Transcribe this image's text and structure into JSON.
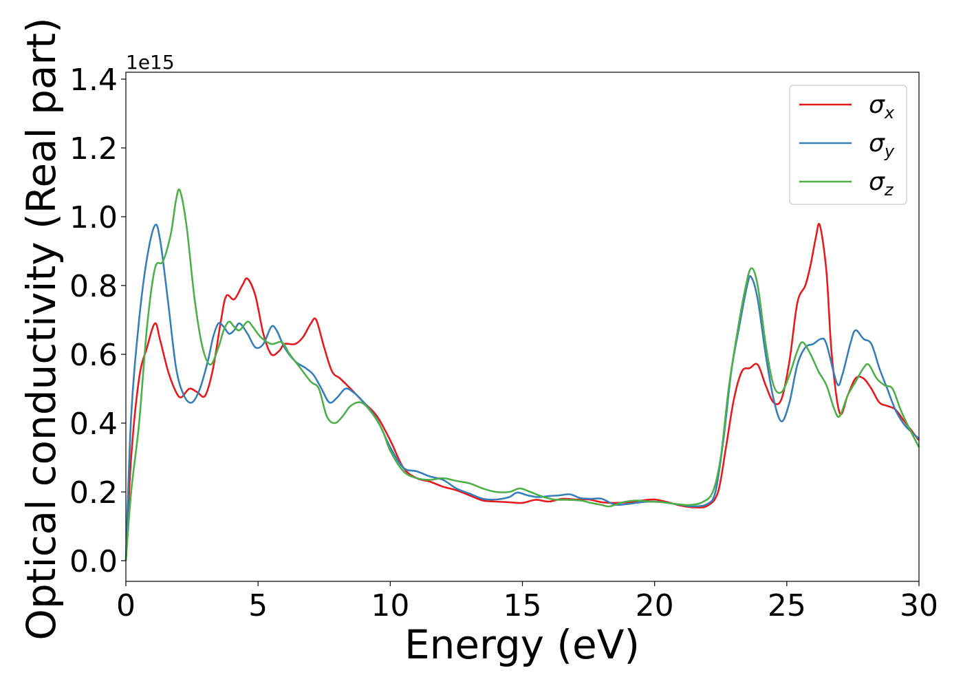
{
  "chart_data": {
    "type": "line",
    "xlabel": "Energy (eV)",
    "ylabel": "Optical conductivity (Real part)",
    "y_offset_label": "1e15",
    "xlim": [
      0,
      30
    ],
    "ylim": [
      -0.06,
      1.42
    ],
    "xticks": [
      0,
      5,
      10,
      15,
      20,
      25,
      30
    ],
    "xtick_labels": [
      "0",
      "5",
      "10",
      "15",
      "20",
      "25",
      "30"
    ],
    "yticks": [
      0.0,
      0.2,
      0.4,
      0.6,
      0.8,
      1.0,
      1.2,
      1.4
    ],
    "ytick_labels": [
      "0.0",
      "0.2",
      "0.4",
      "0.6",
      "0.8",
      "1.0",
      "1.2",
      "1.4"
    ],
    "grid": false,
    "legend_position": "top-right",
    "series": [
      {
        "name": "σx",
        "symbol": "σ",
        "subscript": "x",
        "color": "#e41a1c",
        "points": [
          [
            0,
            0
          ],
          [
            0.2,
            0.3
          ],
          [
            0.5,
            0.53
          ],
          [
            0.8,
            0.62
          ],
          [
            1.1,
            0.69
          ],
          [
            1.3,
            0.64
          ],
          [
            1.6,
            0.55
          ],
          [
            1.9,
            0.49
          ],
          [
            2.1,
            0.475
          ],
          [
            2.4,
            0.5
          ],
          [
            2.7,
            0.49
          ],
          [
            3.0,
            0.48
          ],
          [
            3.3,
            0.56
          ],
          [
            3.6,
            0.7
          ],
          [
            3.8,
            0.77
          ],
          [
            4.1,
            0.76
          ],
          [
            4.4,
            0.8
          ],
          [
            4.6,
            0.82
          ],
          [
            4.9,
            0.77
          ],
          [
            5.2,
            0.66
          ],
          [
            5.5,
            0.6
          ],
          [
            5.8,
            0.61
          ],
          [
            6.0,
            0.63
          ],
          [
            6.4,
            0.63
          ],
          [
            6.7,
            0.65
          ],
          [
            7.0,
            0.69
          ],
          [
            7.2,
            0.7
          ],
          [
            7.5,
            0.62
          ],
          [
            7.8,
            0.55
          ],
          [
            8.1,
            0.53
          ],
          [
            8.5,
            0.5
          ],
          [
            9.0,
            0.46
          ],
          [
            9.5,
            0.42
          ],
          [
            10.0,
            0.35
          ],
          [
            10.5,
            0.27
          ],
          [
            11.0,
            0.24
          ],
          [
            11.5,
            0.23
          ],
          [
            12.0,
            0.215
          ],
          [
            12.5,
            0.205
          ],
          [
            13.0,
            0.19
          ],
          [
            13.5,
            0.175
          ],
          [
            14.0,
            0.172
          ],
          [
            14.5,
            0.17
          ],
          [
            15.0,
            0.168
          ],
          [
            15.5,
            0.177
          ],
          [
            16.0,
            0.172
          ],
          [
            16.5,
            0.18
          ],
          [
            17.0,
            0.178
          ],
          [
            17.5,
            0.178
          ],
          [
            18.0,
            0.17
          ],
          [
            18.5,
            0.168
          ],
          [
            19.0,
            0.17
          ],
          [
            19.5,
            0.175
          ],
          [
            20.0,
            0.178
          ],
          [
            20.5,
            0.17
          ],
          [
            21.0,
            0.16
          ],
          [
            21.5,
            0.155
          ],
          [
            22.0,
            0.16
          ],
          [
            22.4,
            0.2
          ],
          [
            22.7,
            0.33
          ],
          [
            23.0,
            0.47
          ],
          [
            23.3,
            0.55
          ],
          [
            23.6,
            0.56
          ],
          [
            23.9,
            0.57
          ],
          [
            24.2,
            0.51
          ],
          [
            24.5,
            0.46
          ],
          [
            24.8,
            0.47
          ],
          [
            25.1,
            0.58
          ],
          [
            25.4,
            0.75
          ],
          [
            25.7,
            0.8
          ],
          [
            25.9,
            0.86
          ],
          [
            26.1,
            0.94
          ],
          [
            26.25,
            0.975
          ],
          [
            26.5,
            0.84
          ],
          [
            26.7,
            0.6
          ],
          [
            27.0,
            0.43
          ],
          [
            27.3,
            0.48
          ],
          [
            27.6,
            0.53
          ],
          [
            27.9,
            0.53
          ],
          [
            28.2,
            0.5
          ],
          [
            28.5,
            0.46
          ],
          [
            28.8,
            0.45
          ],
          [
            29.1,
            0.44
          ],
          [
            29.4,
            0.41
          ],
          [
            29.7,
            0.38
          ],
          [
            30.0,
            0.35
          ]
        ]
      },
      {
        "name": "σy",
        "symbol": "σ",
        "subscript": "y",
        "color": "#377eb8",
        "points": [
          [
            0,
            0
          ],
          [
            0.2,
            0.42
          ],
          [
            0.5,
            0.7
          ],
          [
            0.8,
            0.88
          ],
          [
            1.1,
            0.975
          ],
          [
            1.3,
            0.93
          ],
          [
            1.6,
            0.75
          ],
          [
            1.9,
            0.56
          ],
          [
            2.2,
            0.48
          ],
          [
            2.5,
            0.46
          ],
          [
            2.8,
            0.5
          ],
          [
            3.1,
            0.58
          ],
          [
            3.3,
            0.65
          ],
          [
            3.5,
            0.69
          ],
          [
            3.7,
            0.68
          ],
          [
            3.9,
            0.66
          ],
          [
            4.1,
            0.67
          ],
          [
            4.3,
            0.69
          ],
          [
            4.6,
            0.66
          ],
          [
            4.9,
            0.62
          ],
          [
            5.2,
            0.63
          ],
          [
            5.5,
            0.68
          ],
          [
            5.7,
            0.67
          ],
          [
            6.0,
            0.62
          ],
          [
            6.4,
            0.58
          ],
          [
            6.8,
            0.56
          ],
          [
            7.1,
            0.54
          ],
          [
            7.4,
            0.5
          ],
          [
            7.7,
            0.46
          ],
          [
            8.0,
            0.475
          ],
          [
            8.3,
            0.5
          ],
          [
            8.6,
            0.49
          ],
          [
            9.0,
            0.46
          ],
          [
            9.5,
            0.41
          ],
          [
            10.0,
            0.33
          ],
          [
            10.5,
            0.27
          ],
          [
            11.0,
            0.26
          ],
          [
            11.5,
            0.245
          ],
          [
            12.0,
            0.235
          ],
          [
            12.5,
            0.21
          ],
          [
            13.0,
            0.195
          ],
          [
            13.5,
            0.18
          ],
          [
            14.0,
            0.178
          ],
          [
            14.5,
            0.185
          ],
          [
            14.8,
            0.198
          ],
          [
            15.2,
            0.19
          ],
          [
            15.6,
            0.185
          ],
          [
            16.0,
            0.188
          ],
          [
            16.4,
            0.19
          ],
          [
            16.8,
            0.193
          ],
          [
            17.2,
            0.182
          ],
          [
            17.6,
            0.18
          ],
          [
            18.0,
            0.18
          ],
          [
            18.5,
            0.163
          ],
          [
            19.0,
            0.165
          ],
          [
            19.5,
            0.17
          ],
          [
            20.0,
            0.172
          ],
          [
            20.5,
            0.168
          ],
          [
            21.0,
            0.162
          ],
          [
            21.5,
            0.158
          ],
          [
            22.0,
            0.165
          ],
          [
            22.3,
            0.2
          ],
          [
            22.6,
            0.35
          ],
          [
            22.9,
            0.55
          ],
          [
            23.2,
            0.68
          ],
          [
            23.5,
            0.8
          ],
          [
            23.65,
            0.825
          ],
          [
            23.9,
            0.76
          ],
          [
            24.2,
            0.6
          ],
          [
            24.5,
            0.47
          ],
          [
            24.8,
            0.405
          ],
          [
            25.1,
            0.46
          ],
          [
            25.4,
            0.57
          ],
          [
            25.7,
            0.62
          ],
          [
            26.0,
            0.63
          ],
          [
            26.3,
            0.645
          ],
          [
            26.5,
            0.63
          ],
          [
            26.9,
            0.515
          ],
          [
            27.1,
            0.54
          ],
          [
            27.4,
            0.63
          ],
          [
            27.6,
            0.67
          ],
          [
            27.9,
            0.645
          ],
          [
            28.2,
            0.63
          ],
          [
            28.5,
            0.56
          ],
          [
            28.8,
            0.5
          ],
          [
            29.1,
            0.44
          ],
          [
            29.4,
            0.4
          ],
          [
            29.7,
            0.375
          ],
          [
            30.0,
            0.355
          ]
        ]
      },
      {
        "name": "σz",
        "symbol": "σ",
        "subscript": "z",
        "color": "#4daf4a",
        "points": [
          [
            0,
            0
          ],
          [
            0.2,
            0.2
          ],
          [
            0.5,
            0.4
          ],
          [
            0.8,
            0.68
          ],
          [
            1.1,
            0.85
          ],
          [
            1.4,
            0.87
          ],
          [
            1.7,
            0.95
          ],
          [
            1.9,
            1.05
          ],
          [
            2.05,
            1.075
          ],
          [
            2.3,
            0.97
          ],
          [
            2.6,
            0.76
          ],
          [
            2.9,
            0.62
          ],
          [
            3.2,
            0.57
          ],
          [
            3.5,
            0.62
          ],
          [
            3.7,
            0.67
          ],
          [
            3.9,
            0.695
          ],
          [
            4.1,
            0.68
          ],
          [
            4.3,
            0.67
          ],
          [
            4.6,
            0.695
          ],
          [
            4.8,
            0.68
          ],
          [
            5.1,
            0.65
          ],
          [
            5.5,
            0.63
          ],
          [
            5.9,
            0.635
          ],
          [
            6.2,
            0.6
          ],
          [
            6.6,
            0.56
          ],
          [
            7.0,
            0.52
          ],
          [
            7.3,
            0.5
          ],
          [
            7.6,
            0.42
          ],
          [
            7.9,
            0.4
          ],
          [
            8.2,
            0.42
          ],
          [
            8.5,
            0.45
          ],
          [
            8.9,
            0.46
          ],
          [
            9.3,
            0.43
          ],
          [
            9.7,
            0.38
          ],
          [
            10.0,
            0.32
          ],
          [
            10.5,
            0.26
          ],
          [
            11.0,
            0.24
          ],
          [
            11.5,
            0.235
          ],
          [
            12.0,
            0.24
          ],
          [
            12.5,
            0.232
          ],
          [
            13.0,
            0.225
          ],
          [
            13.5,
            0.21
          ],
          [
            14.0,
            0.2
          ],
          [
            14.5,
            0.2
          ],
          [
            14.9,
            0.21
          ],
          [
            15.3,
            0.2
          ],
          [
            15.7,
            0.188
          ],
          [
            16.2,
            0.178
          ],
          [
            16.7,
            0.177
          ],
          [
            17.2,
            0.175
          ],
          [
            17.6,
            0.168
          ],
          [
            18.0,
            0.162
          ],
          [
            18.3,
            0.158
          ],
          [
            18.8,
            0.17
          ],
          [
            19.3,
            0.175
          ],
          [
            19.8,
            0.172
          ],
          [
            20.3,
            0.17
          ],
          [
            20.8,
            0.165
          ],
          [
            21.3,
            0.162
          ],
          [
            21.8,
            0.17
          ],
          [
            22.2,
            0.2
          ],
          [
            22.5,
            0.3
          ],
          [
            22.8,
            0.5
          ],
          [
            23.1,
            0.65
          ],
          [
            23.4,
            0.78
          ],
          [
            23.65,
            0.85
          ],
          [
            23.9,
            0.8
          ],
          [
            24.2,
            0.63
          ],
          [
            24.5,
            0.51
          ],
          [
            24.8,
            0.49
          ],
          [
            25.1,
            0.54
          ],
          [
            25.4,
            0.61
          ],
          [
            25.6,
            0.635
          ],
          [
            25.9,
            0.6
          ],
          [
            26.2,
            0.55
          ],
          [
            26.5,
            0.51
          ],
          [
            26.8,
            0.44
          ],
          [
            27.0,
            0.42
          ],
          [
            27.3,
            0.48
          ],
          [
            27.6,
            0.52
          ],
          [
            27.9,
            0.56
          ],
          [
            28.1,
            0.57
          ],
          [
            28.4,
            0.53
          ],
          [
            28.7,
            0.51
          ],
          [
            29.0,
            0.5
          ],
          [
            29.3,
            0.44
          ],
          [
            29.6,
            0.39
          ],
          [
            30.0,
            0.33
          ]
        ]
      }
    ]
  }
}
